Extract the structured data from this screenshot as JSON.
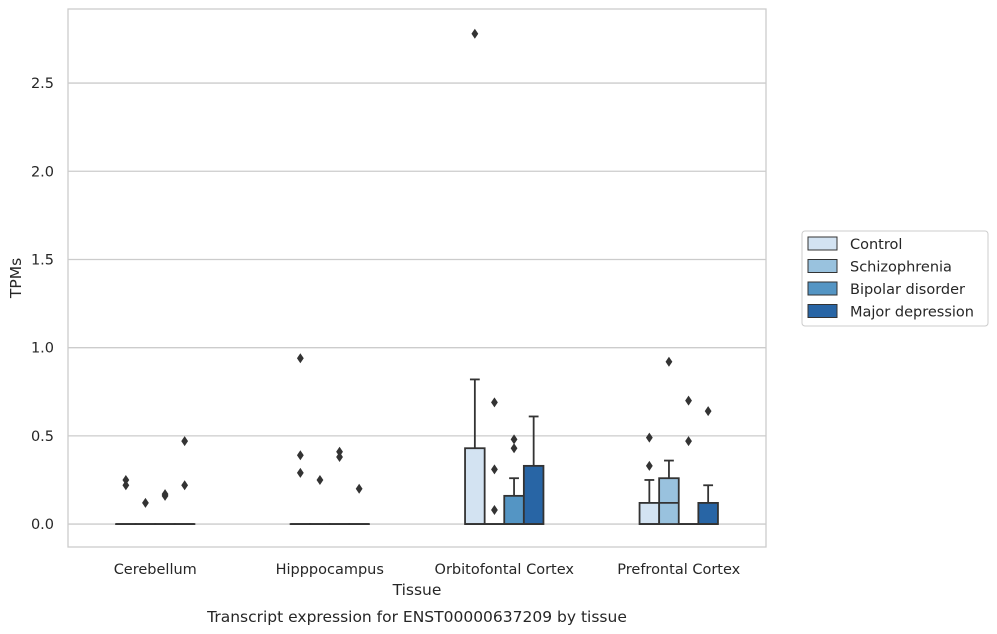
{
  "chart_data": {
    "type": "box",
    "xlabel": "Tissue",
    "ylabel": "TPMs",
    "caption": "Transcript expression for ENST00000637209 by tissue",
    "ylim": [
      -0.13,
      2.92
    ],
    "yticks": [
      "0.0",
      "0.5",
      "1.0",
      "1.5",
      "2.0",
      "2.5"
    ],
    "grid": true,
    "legend_position": "right",
    "categories": [
      "Cerebellum",
      "Hipppocampus",
      "Orbitofontal Cortex",
      "Prefrontal Cortex"
    ],
    "series": [
      {
        "name": "Control",
        "color": "#d3e3f2",
        "boxes": [
          {
            "q1": 0,
            "median": 0,
            "q3": 0,
            "whislo": 0,
            "whishi": 0,
            "fliers": [
              0.25,
              0.22
            ]
          },
          {
            "q1": 0,
            "median": 0,
            "q3": 0,
            "whislo": 0,
            "whishi": 0,
            "fliers": [
              0.94,
              0.39,
              0.29
            ]
          },
          {
            "q1": 0,
            "median": 0,
            "q3": 0.43,
            "whislo": 0,
            "whishi": 0.82,
            "fliers": [
              2.78
            ]
          },
          {
            "q1": 0,
            "median": 0,
            "q3": 0.12,
            "whislo": 0,
            "whishi": 0.25,
            "fliers": [
              0.49,
              0.33
            ]
          }
        ]
      },
      {
        "name": "Schizophrenia",
        "color": "#99c2de",
        "boxes": [
          {
            "q1": 0,
            "median": 0,
            "q3": 0,
            "whislo": 0,
            "whishi": 0,
            "fliers": [
              0.12
            ]
          },
          {
            "q1": 0,
            "median": 0,
            "q3": 0,
            "whislo": 0,
            "whishi": 0,
            "fliers": [
              0.25
            ]
          },
          {
            "q1": 0,
            "median": 0,
            "q3": 0,
            "whislo": 0,
            "whishi": 0,
            "fliers": [
              0.69,
              0.31,
              0.08
            ]
          },
          {
            "q1": 0,
            "median": 0.12,
            "q3": 0.26,
            "whislo": 0,
            "whishi": 0.36,
            "fliers": [
              0.92
            ]
          }
        ]
      },
      {
        "name": "Bipolar disorder",
        "color": "#5495c4",
        "boxes": [
          {
            "q1": 0,
            "median": 0,
            "q3": 0,
            "whislo": 0,
            "whishi": 0,
            "fliers": [
              0.17,
              0.16
            ]
          },
          {
            "q1": 0,
            "median": 0,
            "q3": 0,
            "whislo": 0,
            "whishi": 0,
            "fliers": [
              0.41,
              0.38
            ]
          },
          {
            "q1": 0,
            "median": 0,
            "q3": 0.16,
            "whislo": 0,
            "whishi": 0.26,
            "fliers": [
              0.48,
              0.43
            ]
          },
          {
            "q1": 0,
            "median": 0,
            "q3": 0,
            "whislo": 0,
            "whishi": 0,
            "fliers": [
              0.7,
              0.47
            ]
          }
        ]
      },
      {
        "name": "Major depression",
        "color": "#2865a5",
        "boxes": [
          {
            "q1": 0,
            "median": 0,
            "q3": 0,
            "whislo": 0,
            "whishi": 0,
            "fliers": [
              0.47,
              0.22
            ]
          },
          {
            "q1": 0,
            "median": 0,
            "q3": 0,
            "whislo": 0,
            "whishi": 0,
            "fliers": [
              0.2
            ]
          },
          {
            "q1": 0,
            "median": 0,
            "q3": 0.33,
            "whislo": 0,
            "whishi": 0.61,
            "fliers": []
          },
          {
            "q1": 0,
            "median": 0,
            "q3": 0.12,
            "whislo": 0,
            "whishi": 0.22,
            "fliers": [
              0.64
            ]
          }
        ]
      }
    ]
  }
}
